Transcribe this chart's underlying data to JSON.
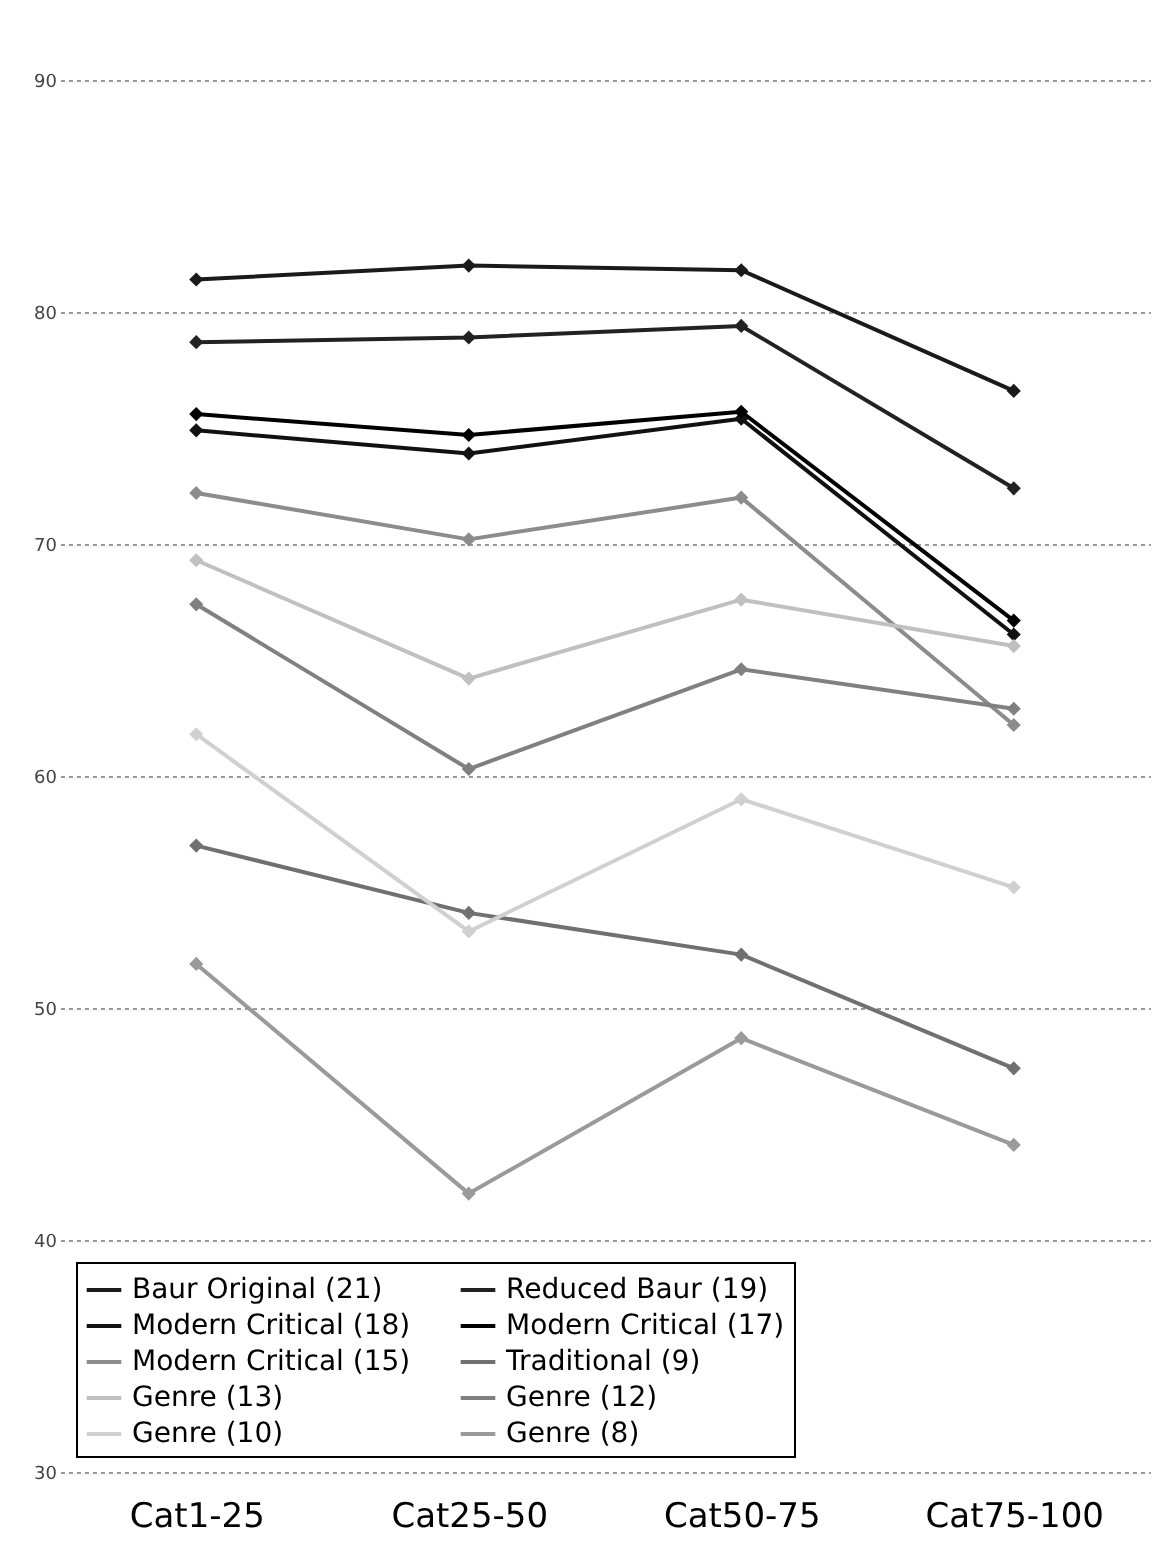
{
  "chart_data": {
    "type": "line",
    "categories": [
      "Cat1-25",
      "Cat25-50",
      "Cat50-75",
      "Cat75-100"
    ],
    "ylim": [
      30,
      90
    ],
    "yticks": [
      30,
      40,
      50,
      60,
      70,
      80,
      90
    ],
    "grid": "y",
    "legend": "bottom",
    "marker": "diamond",
    "series": [
      {
        "name": "Baur Original (21)",
        "color": "#1a1a1a",
        "values": [
          81.4,
          82.0,
          81.8,
          76.6
        ]
      },
      {
        "name": "Reduced Baur (19)",
        "color": "#222222",
        "values": [
          78.7,
          78.9,
          79.4,
          72.4
        ]
      },
      {
        "name": "Modern Critical (18)",
        "color": "#111111",
        "values": [
          74.9,
          73.9,
          75.4,
          66.1
        ]
      },
      {
        "name": "Modern Critical (17)",
        "color": "#000000",
        "values": [
          75.6,
          74.7,
          75.7,
          66.7
        ]
      },
      {
        "name": "Modern Critical (15)",
        "color": "#8c8c8c",
        "values": [
          72.2,
          70.2,
          72.0,
          62.2
        ]
      },
      {
        "name": "Traditional (9)",
        "color": "#707070",
        "values": [
          57.0,
          54.1,
          52.3,
          47.4
        ]
      },
      {
        "name": "Genre (13)",
        "color": "#c0c0c0",
        "values": [
          69.3,
          64.2,
          67.6,
          65.6
        ]
      },
      {
        "name": "Genre (12)",
        "color": "#808080",
        "values": [
          67.4,
          60.3,
          64.6,
          62.9
        ]
      },
      {
        "name": "Genre (10)",
        "color": "#d0d0d0",
        "values": [
          61.8,
          53.3,
          59.0,
          55.2
        ]
      },
      {
        "name": "Genre (8)",
        "color": "#9a9a9a",
        "values": [
          51.9,
          42.0,
          48.7,
          44.1
        ]
      }
    ]
  }
}
